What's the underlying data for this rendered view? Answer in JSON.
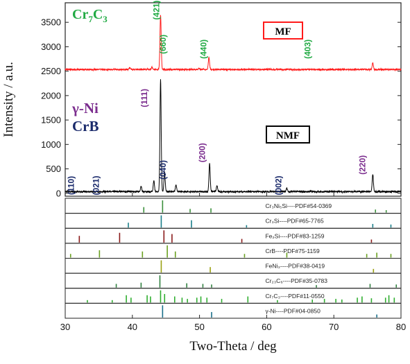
{
  "chart_data": {
    "type": "line",
    "xlabel": "Two-Theta / deg",
    "ylabel": "Intensity / a.u.",
    "xlim": [
      30,
      80
    ],
    "ylim": [
      -60,
      3900
    ],
    "x_ticks": [
      "30",
      "40",
      "50",
      "60",
      "70",
      "80"
    ],
    "y_ticks": [
      "0",
      "500",
      "1000",
      "1500",
      "2000",
      "2500",
      "3000",
      "3500"
    ],
    "colors": {
      "MF": "#ff1a1a",
      "NMF": "#000000",
      "Cr7C3": "#22aa44",
      "gamma_Ni": "#7b2d8e",
      "CrB": "#1a2a6b"
    },
    "series": [
      {
        "name": "MF",
        "baseline": 2530,
        "peaks": [
          {
            "two_theta": 44.2,
            "intensity": 3640
          },
          {
            "two_theta": 51.4,
            "intensity": 2780
          },
          {
            "two_theta": 75.8,
            "intensity": 2660
          },
          {
            "two_theta": 42.9,
            "intensity": 2580
          },
          {
            "two_theta": 39.6,
            "intensity": 2570
          },
          {
            "two_theta": 49.9,
            "intensity": 2560
          }
        ]
      },
      {
        "name": "NMF",
        "baseline": 30,
        "peaks": [
          {
            "two_theta": 44.2,
            "intensity": 2330
          },
          {
            "two_theta": 44.8,
            "intensity": 430
          },
          {
            "two_theta": 51.5,
            "intensity": 600
          },
          {
            "two_theta": 75.8,
            "intensity": 380
          },
          {
            "two_theta": 43.2,
            "intensity": 260
          },
          {
            "two_theta": 46.5,
            "intensity": 170
          },
          {
            "two_theta": 52.6,
            "intensity": 150
          },
          {
            "two_theta": 41.3,
            "intensity": 140
          },
          {
            "two_theta": 63.0,
            "intensity": 100
          }
        ]
      }
    ],
    "phase_labels": [
      {
        "text": "Cr7C3",
        "sub_html": [
          "Cr",
          "7",
          "C",
          "3"
        ],
        "color": "#22aa44"
      },
      {
        "text": "γ-Ni",
        "color": "#7b2d8e"
      },
      {
        "text": "CrB",
        "color": "#1a2a6b"
      }
    ],
    "sample_labels": [
      {
        "text": "MF",
        "border_color": "#ff1a1a"
      },
      {
        "text": "NMF",
        "border_color": "#000000"
      }
    ],
    "peak_labels": [
      {
        "text": "(421)",
        "two_theta": 44.0,
        "intensity": 3750,
        "color": "#22aa44"
      },
      {
        "text": "(660)",
        "two_theta": 45.0,
        "intensity": 3050,
        "color": "#22aa44"
      },
      {
        "text": "(440)",
        "two_theta": 51.0,
        "intensity": 2950,
        "color": "#22aa44"
      },
      {
        "text": "(403)",
        "two_theta": 66.5,
        "intensity": 2950,
        "color": "#22aa44"
      },
      {
        "text": "(111)",
        "two_theta": 42.2,
        "intensity": 1950,
        "color": "#7b2d8e"
      },
      {
        "text": "(200)",
        "two_theta": 50.8,
        "intensity": 830,
        "color": "#7b2d8e"
      },
      {
        "text": "(220)",
        "two_theta": 74.7,
        "intensity": 580,
        "color": "#7b2d8e"
      },
      {
        "text": "(110)",
        "two_theta": 31.3,
        "intensity": 160,
        "color": "#1a2a6b"
      },
      {
        "text": "(021)",
        "two_theta": 35.0,
        "intensity": 160,
        "color": "#1a2a6b"
      },
      {
        "text": "(040)",
        "two_theta": 45.0,
        "intensity": 480,
        "color": "#1a2a6b"
      },
      {
        "text": "(002)",
        "two_theta": 62.2,
        "intensity": 160,
        "color": "#1a2a6b"
      }
    ],
    "reference_panels": [
      {
        "label": "Cr₃Ni₅Si----PDF#54-0369",
        "color": "#3b8f3b",
        "peaks": [
          [
            41.7,
            0.45
          ],
          [
            44.5,
            1.0
          ],
          [
            48.6,
            0.3
          ],
          [
            51.7,
            0.35
          ],
          [
            76.2,
            0.25
          ],
          [
            77.8,
            0.2
          ]
        ]
      },
      {
        "label": "Cr₃Si----PDF#65-7765",
        "color": "#1a7f8a",
        "peaks": [
          [
            39.4,
            0.4
          ],
          [
            44.3,
            1.0
          ],
          [
            48.8,
            0.6
          ],
          [
            57.0,
            0.2
          ],
          [
            75.8,
            0.3
          ],
          [
            78.5,
            0.25
          ]
        ]
      },
      {
        "label": "Fe₂Si----PDF#83-1259",
        "color": "#8a1a1a",
        "peaks": [
          [
            32.1,
            0.55
          ],
          [
            38.1,
            0.8
          ],
          [
            44.7,
            1.0
          ],
          [
            45.9,
            0.7
          ],
          [
            56.3,
            0.3
          ],
          [
            75.6,
            0.25
          ]
        ]
      },
      {
        "label": "CrB----PDF#75-1159",
        "color": "#6aa020",
        "peaks": [
          [
            30.8,
            0.3
          ],
          [
            35.1,
            0.6
          ],
          [
            41.5,
            0.5
          ],
          [
            45.2,
            1.0
          ],
          [
            46.4,
            0.5
          ],
          [
            56.7,
            0.3
          ],
          [
            63.0,
            0.4
          ],
          [
            74.9,
            0.3
          ],
          [
            76.4,
            0.4
          ],
          [
            78.5,
            0.3
          ]
        ]
      },
      {
        "label": "FeNi₃----PDF#38-0419",
        "color": "#9aa010",
        "peaks": [
          [
            44.3,
            1.0
          ],
          [
            51.6,
            0.45
          ],
          [
            75.9,
            0.3
          ]
        ]
      },
      {
        "label": "Cr₂₃C₆----PDF#35-0783",
        "color": "#2f7f3f",
        "peaks": [
          [
            37.6,
            0.3
          ],
          [
            41.3,
            0.4
          ],
          [
            44.1,
            1.0
          ],
          [
            48.1,
            0.35
          ],
          [
            50.5,
            0.3
          ],
          [
            51.8,
            0.25
          ],
          [
            67.4,
            0.2
          ],
          [
            75.4,
            0.3
          ],
          [
            79.3,
            0.25
          ]
        ]
      },
      {
        "label": "Cr₇C₃----PDF#11-0550",
        "color": "#2fae2f",
        "peaks": [
          [
            33.3,
            0.2
          ],
          [
            37.0,
            0.2
          ],
          [
            39.1,
            0.6
          ],
          [
            39.8,
            0.4
          ],
          [
            42.2,
            0.6
          ],
          [
            42.7,
            0.5
          ],
          [
            44.2,
            1.0
          ],
          [
            44.8,
            0.7
          ],
          [
            46.3,
            0.5
          ],
          [
            47.4,
            0.4
          ],
          [
            48.2,
            0.3
          ],
          [
            49.6,
            0.4
          ],
          [
            50.2,
            0.5
          ],
          [
            51.1,
            0.4
          ],
          [
            53.3,
            0.3
          ],
          [
            57.2,
            0.5
          ],
          [
            61.6,
            0.2
          ],
          [
            66.8,
            0.25
          ],
          [
            68.6,
            0.3
          ],
          [
            70.3,
            0.3
          ],
          [
            71.2,
            0.25
          ],
          [
            73.5,
            0.4
          ],
          [
            74.2,
            0.5
          ],
          [
            75.6,
            0.35
          ],
          [
            77.7,
            0.4
          ],
          [
            78.2,
            0.6
          ],
          [
            79.0,
            0.4
          ]
        ]
      },
      {
        "label": "γ-Ni----PDF#04-0850",
        "color": "#1a6f8a",
        "peaks": [
          [
            44.5,
            1.0
          ],
          [
            51.8,
            0.45
          ],
          [
            76.4,
            0.25
          ]
        ]
      }
    ]
  }
}
